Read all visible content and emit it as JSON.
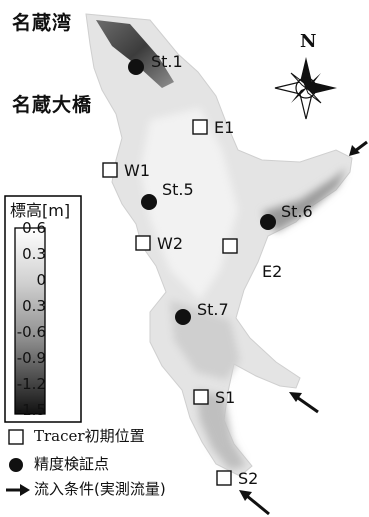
{
  "place_names": {
    "bay": "名蔵湾",
    "bridge": "名蔵大橋"
  },
  "north_label": "N",
  "stations": [
    {
      "label": "St.1"
    },
    {
      "label": "St.5"
    },
    {
      "label": "St.6"
    },
    {
      "label": "St.7"
    }
  ],
  "tracer_points": [
    {
      "label": "E1"
    },
    {
      "label": "W1"
    },
    {
      "label": "W2"
    },
    {
      "label": "E2"
    },
    {
      "label": "S1"
    },
    {
      "label": "S2"
    }
  ],
  "elevation_legend": {
    "title": "標高[m]",
    "ticks": [
      "0.6",
      "0.3",
      "0",
      "0.3",
      "-0.6",
      "-0.9",
      "-1.2",
      "-1.5"
    ],
    "color_high": "#ffffff",
    "color_low": "#111111"
  },
  "symbol_legend": {
    "tracer": "Tracer初期位置",
    "station": "精度検証点",
    "inflow": "流入条件(実測流量)"
  },
  "colors": {
    "water_light": "#e8e8e8",
    "water_mid": "#b9b9b9",
    "water_dark": "#3a3a3a",
    "marker": "#111111"
  }
}
